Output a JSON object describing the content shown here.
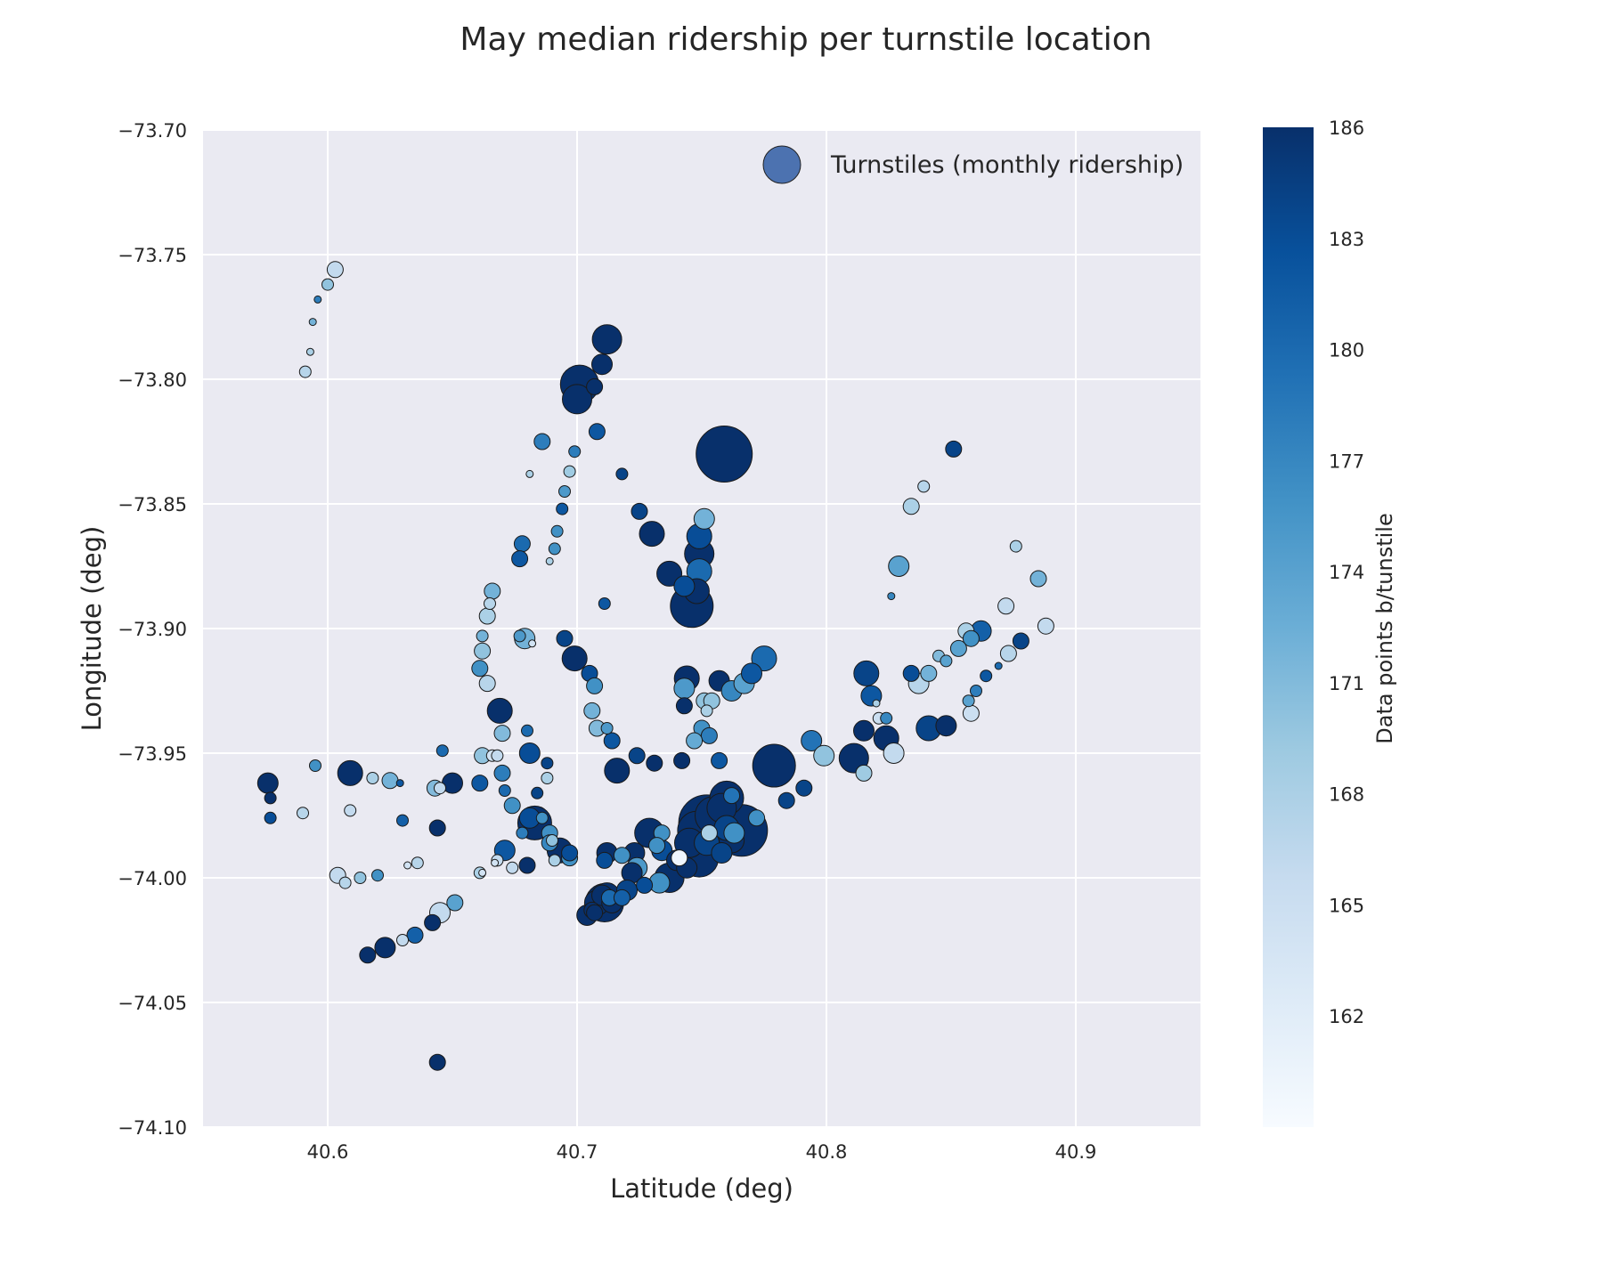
{
  "chart_data": {
    "type": "scatter",
    "title": "May median ridership per turnstile location",
    "xlabel": "Latitude (deg)",
    "ylabel": "Longitude (deg)",
    "xlim": [
      40.55,
      40.95
    ],
    "ylim": [
      -74.1,
      -73.7
    ],
    "x_ticks": [
      "40.6",
      "40.7",
      "40.8",
      "40.9"
    ],
    "y_ticks": [
      "−73.70",
      "−73.75",
      "−73.80",
      "−73.85",
      "−73.90",
      "−73.95",
      "−74.00",
      "−74.05",
      "−74.10"
    ],
    "grid": true,
    "legend": {
      "label": "Turnstiles (monthly ridership)",
      "position": "top-right",
      "color": "#4c72b0"
    },
    "colorbar": {
      "label": "Data points b/tunstile",
      "min": 159,
      "max": 186,
      "ticks": [
        "162",
        "165",
        "168",
        "171",
        "174",
        "177",
        "180",
        "183",
        "186"
      ],
      "colormap": "Blues"
    },
    "point_fields": [
      "lat",
      "lon",
      "relative_size",
      "color_value"
    ],
    "points": [
      [
        40.603,
        -73.756,
        3,
        166
      ],
      [
        40.6,
        -73.762,
        2,
        170
      ],
      [
        40.596,
        -73.768,
        1,
        178
      ],
      [
        40.594,
        -73.777,
        1,
        172
      ],
      [
        40.593,
        -73.789,
        1,
        168
      ],
      [
        40.591,
        -73.797,
        2,
        167
      ],
      [
        40.712,
        -73.784,
        6,
        186
      ],
      [
        40.71,
        -73.794,
        4,
        186
      ],
      [
        40.701,
        -73.802,
        8,
        186
      ],
      [
        40.707,
        -73.803,
        3,
        186
      ],
      [
        40.7,
        -73.808,
        6,
        186
      ],
      [
        40.708,
        -73.821,
        3,
        182
      ],
      [
        40.686,
        -73.825,
        3,
        178
      ],
      [
        40.699,
        -73.829,
        2,
        178
      ],
      [
        40.681,
        -73.838,
        1,
        168
      ],
      [
        40.697,
        -73.837,
        2,
        169
      ],
      [
        40.718,
        -73.838,
        2,
        184
      ],
      [
        40.695,
        -73.845,
        2,
        175
      ],
      [
        40.694,
        -73.852,
        2,
        182
      ],
      [
        40.692,
        -73.861,
        2,
        176
      ],
      [
        40.691,
        -73.868,
        2,
        176
      ],
      [
        40.689,
        -73.873,
        1,
        168
      ],
      [
        40.678,
        -73.866,
        3,
        180
      ],
      [
        40.677,
        -73.872,
        3,
        182
      ],
      [
        40.666,
        -73.885,
        3,
        172
      ],
      [
        40.665,
        -73.89,
        2,
        167
      ],
      [
        40.664,
        -73.895,
        3,
        168
      ],
      [
        40.711,
        -73.89,
        2,
        182
      ],
      [
        40.759,
        -73.83,
        12,
        186
      ],
      [
        40.851,
        -73.828,
        3,
        184
      ],
      [
        40.839,
        -73.843,
        2,
        167
      ],
      [
        40.834,
        -73.851,
        3,
        168
      ],
      [
        40.725,
        -73.853,
        3,
        184
      ],
      [
        40.73,
        -73.862,
        5,
        186
      ],
      [
        40.751,
        -73.856,
        4,
        172
      ],
      [
        40.749,
        -73.863,
        5,
        183
      ],
      [
        40.749,
        -73.87,
        6,
        186
      ],
      [
        40.737,
        -73.878,
        5,
        186
      ],
      [
        40.749,
        -73.877,
        5,
        180
      ],
      [
        40.743,
        -73.883,
        4,
        183
      ],
      [
        40.748,
        -73.885,
        5,
        186
      ],
      [
        40.746,
        -73.891,
        9,
        186
      ],
      [
        40.829,
        -73.875,
        4,
        174
      ],
      [
        40.826,
        -73.887,
        1,
        177
      ],
      [
        40.876,
        -73.867,
        2,
        168
      ],
      [
        40.885,
        -73.88,
        3,
        172
      ],
      [
        40.872,
        -73.891,
        3,
        166
      ],
      [
        40.888,
        -73.899,
        3,
        166
      ],
      [
        40.862,
        -73.901,
        4,
        181
      ],
      [
        40.856,
        -73.901,
        3,
        168
      ],
      [
        40.858,
        -73.904,
        3,
        176
      ],
      [
        40.853,
        -73.908,
        3,
        174
      ],
      [
        40.878,
        -73.905,
        3,
        184
      ],
      [
        40.873,
        -73.91,
        3,
        167
      ],
      [
        40.845,
        -73.911,
        2,
        171
      ],
      [
        40.848,
        -73.913,
        2,
        174
      ],
      [
        40.841,
        -73.918,
        3,
        172
      ],
      [
        40.834,
        -73.918,
        3,
        183
      ],
      [
        40.837,
        -73.922,
        4,
        167
      ],
      [
        40.695,
        -73.904,
        3,
        184
      ],
      [
        40.699,
        -73.912,
        5,
        186
      ],
      [
        40.677,
        -73.903,
        2,
        175
      ],
      [
        40.679,
        -73.904,
        4,
        172
      ],
      [
        40.682,
        -73.906,
        1,
        164
      ],
      [
        40.662,
        -73.903,
        2,
        172
      ],
      [
        40.662,
        -73.909,
        3,
        170
      ],
      [
        40.661,
        -73.916,
        3,
        176
      ],
      [
        40.664,
        -73.922,
        3,
        167
      ],
      [
        40.669,
        -73.933,
        5,
        186
      ],
      [
        40.67,
        -73.942,
        3,
        171
      ],
      [
        40.705,
        -73.918,
        3,
        183
      ],
      [
        40.707,
        -73.923,
        3,
        176
      ],
      [
        40.706,
        -73.933,
        3,
        172
      ],
      [
        40.708,
        -73.94,
        3,
        171
      ],
      [
        40.712,
        -73.94,
        2,
        175
      ],
      [
        40.714,
        -73.945,
        3,
        182
      ],
      [
        40.716,
        -73.957,
        5,
        186
      ],
      [
        40.724,
        -73.951,
        3,
        184
      ],
      [
        40.731,
        -73.954,
        3,
        186
      ],
      [
        40.742,
        -73.953,
        3,
        186
      ],
      [
        40.744,
        -73.92,
        5,
        186
      ],
      [
        40.743,
        -73.924,
        4,
        175
      ],
      [
        40.743,
        -73.931,
        3,
        186
      ],
      [
        40.75,
        -73.94,
        3,
        176
      ],
      [
        40.753,
        -73.943,
        3,
        178
      ],
      [
        40.747,
        -73.945,
        3,
        173
      ],
      [
        40.757,
        -73.953,
        3,
        182
      ],
      [
        40.757,
        -73.921,
        4,
        186
      ],
      [
        40.751,
        -73.929,
        3,
        170
      ],
      [
        40.754,
        -73.929,
        3,
        170
      ],
      [
        40.752,
        -73.933,
        2,
        168
      ],
      [
        40.762,
        -73.925,
        4,
        177
      ],
      [
        40.767,
        -73.922,
        4,
        174
      ],
      [
        40.77,
        -73.918,
        4,
        182
      ],
      [
        40.775,
        -73.912,
        5,
        180
      ],
      [
        40.816,
        -73.918,
        5,
        184
      ],
      [
        40.818,
        -73.927,
        4,
        182
      ],
      [
        40.82,
        -73.93,
        1,
        168
      ],
      [
        40.821,
        -73.936,
        2,
        165
      ],
      [
        40.824,
        -73.936,
        2,
        177
      ],
      [
        40.857,
        -73.929,
        2,
        174
      ],
      [
        40.86,
        -73.925,
        2,
        178
      ],
      [
        40.864,
        -73.919,
        2,
        182
      ],
      [
        40.869,
        -73.915,
        1,
        180
      ],
      [
        40.858,
        -73.934,
        3,
        165
      ],
      [
        40.815,
        -73.941,
        4,
        186
      ],
      [
        40.824,
        -73.944,
        5,
        186
      ],
      [
        40.841,
        -73.94,
        5,
        184
      ],
      [
        40.848,
        -73.939,
        4,
        186
      ],
      [
        40.811,
        -73.952,
        6,
        186
      ],
      [
        40.815,
        -73.958,
        3,
        169
      ],
      [
        40.827,
        -73.95,
        4,
        166
      ],
      [
        40.794,
        -73.945,
        4,
        179
      ],
      [
        40.799,
        -73.951,
        4,
        170
      ],
      [
        40.779,
        -73.955,
        9,
        186
      ],
      [
        40.791,
        -73.964,
        3,
        184
      ],
      [
        40.784,
        -73.969,
        3,
        184
      ],
      [
        40.576,
        -73.962,
        4,
        186
      ],
      [
        40.577,
        -73.968,
        2,
        186
      ],
      [
        40.577,
        -73.976,
        2,
        183
      ],
      [
        40.59,
        -73.974,
        2,
        167
      ],
      [
        40.595,
        -73.955,
        2,
        176
      ],
      [
        40.609,
        -73.958,
        5,
        186
      ],
      [
        40.609,
        -73.973,
        2,
        166
      ],
      [
        40.618,
        -73.96,
        2,
        168
      ],
      [
        40.625,
        -73.961,
        3,
        172
      ],
      [
        40.629,
        -73.962,
        1,
        182
      ],
      [
        40.63,
        -73.977,
        2,
        181
      ],
      [
        40.643,
        -73.964,
        3,
        171
      ],
      [
        40.645,
        -73.964,
        2,
        166
      ],
      [
        40.646,
        -73.949,
        2,
        180
      ],
      [
        40.65,
        -73.962,
        4,
        186
      ],
      [
        40.661,
        -73.962,
        3,
        182
      ],
      [
        40.644,
        -73.98,
        3,
        186
      ],
      [
        40.662,
        -73.951,
        3,
        170
      ],
      [
        40.666,
        -73.951,
        2,
        164
      ],
      [
        40.668,
        -73.951,
        2,
        166
      ],
      [
        40.67,
        -73.958,
        3,
        178
      ],
      [
        40.671,
        -73.965,
        2,
        180
      ],
      [
        40.674,
        -73.971,
        3,
        176
      ],
      [
        40.68,
        -73.941,
        2,
        180
      ],
      [
        40.681,
        -73.95,
        4,
        183
      ],
      [
        40.688,
        -73.954,
        2,
        184
      ],
      [
        40.688,
        -73.96,
        2,
        168
      ],
      [
        40.684,
        -73.966,
        2,
        184
      ],
      [
        40.683,
        -73.978,
        7,
        186
      ],
      [
        40.681,
        -73.976,
        4,
        183
      ],
      [
        40.686,
        -73.976,
        2,
        176
      ],
      [
        40.678,
        -73.982,
        2,
        178
      ],
      [
        40.689,
        -73.982,
        3,
        176
      ],
      [
        40.69,
        -73.985,
        2,
        170
      ],
      [
        40.689,
        -73.986,
        3,
        177
      ],
      [
        40.693,
        -73.989,
        5,
        186
      ],
      [
        40.691,
        -73.993,
        2,
        168
      ],
      [
        40.697,
        -73.992,
        3,
        176
      ],
      [
        40.697,
        -73.99,
        3,
        183
      ],
      [
        40.671,
        -73.989,
        4,
        182
      ],
      [
        40.668,
        -73.993,
        2,
        166
      ],
      [
        40.667,
        -73.994,
        1,
        164
      ],
      [
        40.674,
        -73.996,
        2,
        166
      ],
      [
        40.68,
        -73.995,
        3,
        186
      ],
      [
        40.661,
        -73.998,
        2,
        168
      ],
      [
        40.662,
        -73.998,
        1,
        164
      ],
      [
        40.604,
        -73.999,
        3,
        166
      ],
      [
        40.607,
        -74.002,
        2,
        167
      ],
      [
        40.613,
        -74.0,
        2,
        170
      ],
      [
        40.62,
        -73.999,
        2,
        176
      ],
      [
        40.632,
        -73.995,
        1,
        164
      ],
      [
        40.636,
        -73.994,
        2,
        167
      ],
      [
        40.712,
        -73.99,
        4,
        186
      ],
      [
        40.711,
        -73.993,
        3,
        183
      ],
      [
        40.718,
        -73.991,
        3,
        176
      ],
      [
        40.723,
        -73.99,
        4,
        186
      ],
      [
        40.729,
        -73.982,
        6,
        186
      ],
      [
        40.734,
        -73.982,
        3,
        176
      ],
      [
        40.732,
        -73.987,
        3,
        176
      ],
      [
        40.734,
        -73.989,
        4,
        183
      ],
      [
        40.724,
        -73.996,
        4,
        175
      ],
      [
        40.722,
        -73.998,
        4,
        186
      ],
      [
        40.727,
        -74.003,
        3,
        183
      ],
      [
        40.733,
        -74.002,
        4,
        176
      ],
      [
        40.737,
        -74.0,
        6,
        186
      ],
      [
        40.74,
        -73.993,
        4,
        186
      ],
      [
        40.741,
        -73.992,
        3,
        160
      ],
      [
        40.745,
        -73.986,
        6,
        186
      ],
      [
        40.748,
        -73.981,
        8,
        186
      ],
      [
        40.752,
        -73.978,
        12,
        186
      ],
      [
        40.755,
        -73.975,
        8,
        186
      ],
      [
        40.758,
        -73.972,
        6,
        186
      ],
      [
        40.76,
        -73.968,
        7,
        186
      ],
      [
        40.762,
        -73.967,
        3,
        179
      ],
      [
        40.766,
        -73.981,
        11,
        186
      ],
      [
        40.762,
        -73.985,
        5,
        186
      ],
      [
        40.76,
        -73.98,
        5,
        184
      ],
      [
        40.763,
        -73.982,
        4,
        176
      ],
      [
        40.752,
        -73.986,
        5,
        184
      ],
      [
        40.749,
        -73.992,
        8,
        186
      ],
      [
        40.744,
        -73.996,
        4,
        186
      ],
      [
        40.758,
        -73.99,
        4,
        184
      ],
      [
        40.772,
        -73.976,
        3,
        176
      ],
      [
        40.753,
        -73.982,
        3,
        168
      ],
      [
        40.71,
        -74.007,
        4,
        186
      ],
      [
        40.712,
        -74.007,
        5,
        186
      ],
      [
        40.708,
        -74.01,
        5,
        186
      ],
      [
        40.711,
        -74.01,
        8,
        186
      ],
      [
        40.714,
        -74.01,
        4,
        186
      ],
      [
        40.713,
        -74.008,
        3,
        180
      ],
      [
        40.706,
        -74.013,
        3,
        186
      ],
      [
        40.704,
        -74.015,
        4,
        186
      ],
      [
        40.707,
        -74.014,
        3,
        186
      ],
      [
        40.72,
        -74.005,
        4,
        184
      ],
      [
        40.718,
        -74.008,
        3,
        181
      ],
      [
        40.651,
        -74.01,
        3,
        174
      ],
      [
        40.645,
        -74.014,
        4,
        166
      ],
      [
        40.642,
        -74.018,
        3,
        186
      ],
      [
        40.635,
        -74.023,
        3,
        181
      ],
      [
        40.63,
        -74.025,
        2,
        166
      ],
      [
        40.623,
        -74.028,
        4,
        186
      ],
      [
        40.616,
        -74.031,
        3,
        186
      ],
      [
        40.644,
        -74.074,
        3,
        186
      ]
    ]
  }
}
